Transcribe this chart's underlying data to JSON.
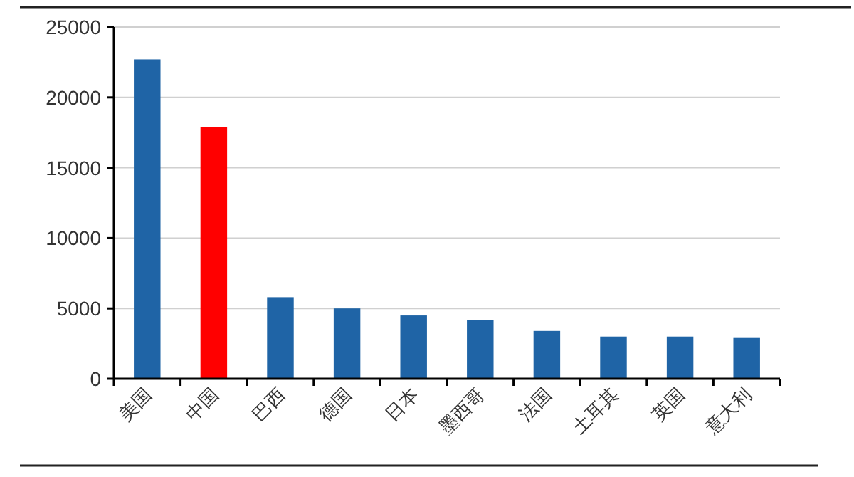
{
  "chart_data": {
    "type": "bar",
    "categories": [
      "美国",
      "中国",
      "巴西",
      "德国",
      "日本",
      "墨西哥",
      "法国",
      "土耳其",
      "英国",
      "意大利"
    ],
    "values": [
      22700,
      17900,
      5800,
      5000,
      4500,
      4200,
      3400,
      3000,
      3000,
      2900
    ],
    "colors": [
      "#1f64a6",
      "#ff0000",
      "#1f64a6",
      "#1f64a6",
      "#1f64a6",
      "#1f64a6",
      "#1f64a6",
      "#1f64a6",
      "#1f64a6",
      "#1f64a6"
    ],
    "ylim": [
      0,
      25000
    ],
    "yticks": [
      0,
      5000,
      10000,
      15000,
      20000,
      25000
    ],
    "grid": "y"
  }
}
